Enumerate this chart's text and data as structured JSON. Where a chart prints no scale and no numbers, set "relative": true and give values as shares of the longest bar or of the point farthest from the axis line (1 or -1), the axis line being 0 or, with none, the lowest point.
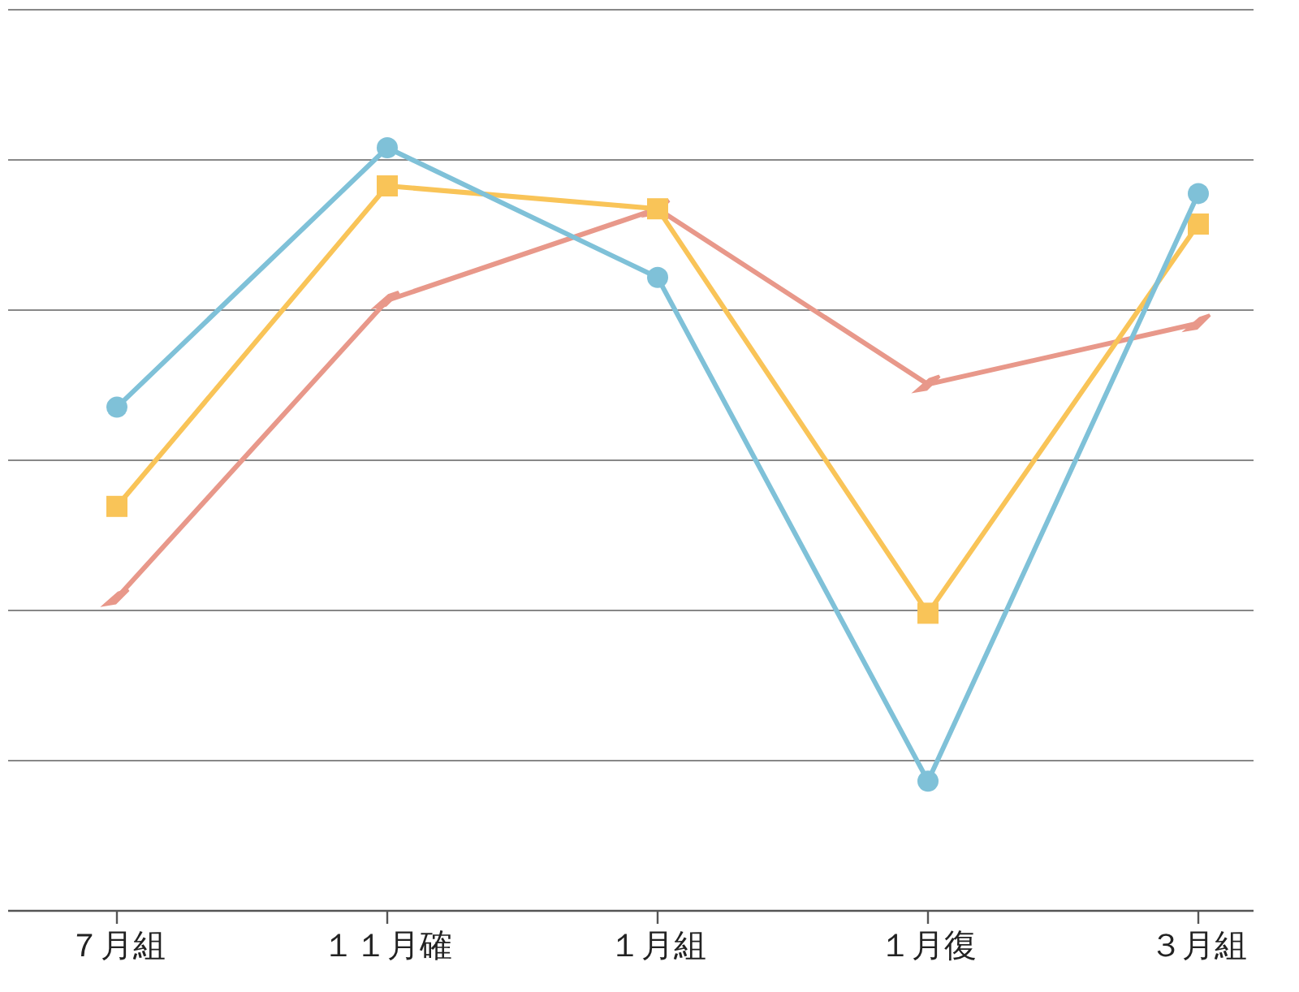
{
  "chart_data": {
    "type": "line",
    "relative": true,
    "grid": "y",
    "categories": [
      "７月組",
      "１１月確",
      "１月組",
      "１月復",
      "３月組"
    ],
    "series": [
      {
        "color": "#e8988a",
        "marker": "diamond",
        "values": [
          0.41,
          0.8,
          0.92,
          0.69,
          0.77
        ]
      },
      {
        "color": "#f9c458",
        "marker": "square",
        "values": [
          0.53,
          0.95,
          0.92,
          0.39,
          0.9
        ]
      },
      {
        "color": "#7fc1d8",
        "marker": "circle",
        "values": [
          0.66,
          1.0,
          0.83,
          0.17,
          0.94
        ]
      }
    ]
  }
}
